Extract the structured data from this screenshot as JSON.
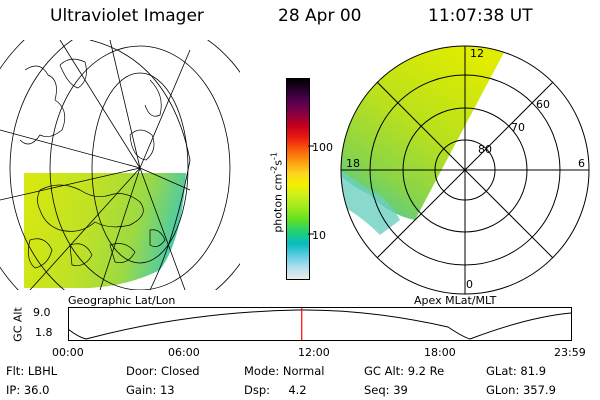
{
  "header": {
    "instrument": "Ultraviolet Imager",
    "date": "28 Apr 00",
    "time": "11:07:38 UT"
  },
  "colorbar": {
    "unit_main": "photon cm",
    "unit_sup1": "-2",
    "unit_mid": "s",
    "unit_sup2": "-1",
    "ticks": [
      "100",
      "10"
    ],
    "colors": [
      "#000000",
      "#2a0030",
      "#5a0050",
      "#8a0040",
      "#c4001c",
      "#ec1a10",
      "#f85c0c",
      "#fc9a10",
      "#fcd420",
      "#f4f000",
      "#c8f020",
      "#9aea1c",
      "#5ee024",
      "#20d078",
      "#08bcc0",
      "#5ccce0",
      "#b0e0ee",
      "#ececec"
    ]
  },
  "geo_panel": {
    "label": "Geographic Lat/Lon",
    "image_colors": [
      "#d8e800",
      "#bce01a",
      "#a0d830",
      "#78d048",
      "#44c8a0"
    ]
  },
  "polar_panel": {
    "label": "Apex MLat/MLT",
    "lat_labels": [
      "80",
      "70",
      "60"
    ],
    "mlt_labels": [
      "12",
      "18",
      "6",
      "0"
    ]
  },
  "altitude_plot": {
    "ylabel": "GC Alt",
    "yticks": [
      "9.0",
      "1.8"
    ],
    "xticks": [
      "00:00",
      "06:00",
      "12:00",
      "18:00",
      "23:59"
    ],
    "current_marker_color": "#ff0000",
    "current_time_hours": 11.13
  },
  "status": {
    "row1": [
      {
        "label": "Flt:",
        "value": "LBHL"
      },
      {
        "label": "Door:",
        "value": "Closed"
      },
      {
        "label": "Mode:",
        "value": "Normal"
      },
      {
        "label": "GC Alt:",
        "value": "9.2 Re"
      },
      {
        "label": "GLat:",
        "value": "81.9"
      }
    ],
    "row2": [
      {
        "label": "IP:",
        "value": "36.0"
      },
      {
        "label": "Gain:",
        "value": "13"
      },
      {
        "label": "Dsp:",
        "value": "4.2"
      },
      {
        "label": "Seq:",
        "value": "39"
      },
      {
        "label": "GLon:",
        "value": "357.9"
      }
    ]
  }
}
